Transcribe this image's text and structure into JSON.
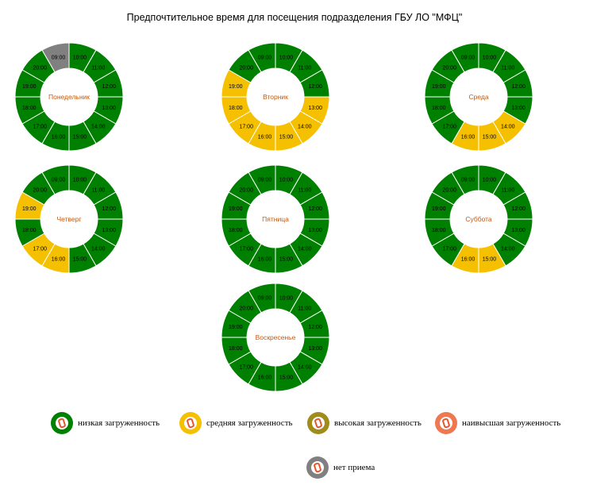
{
  "title": "Предпочтительное время для посещения подразделения ГБУ ЛО \"МФЦ\"",
  "colors": {
    "low": "#008000",
    "medium": "#f5c000",
    "high": "#a08c1a",
    "highest": "#f07850",
    "closed": "#808080",
    "day_label": "#c55a11",
    "hour_label": "#000000"
  },
  "chart_data": [
    {
      "type": "pie",
      "title": "Понедельник",
      "hours": [
        "09:00",
        "10:00",
        "11:00",
        "12:00",
        "13:00",
        "14:00",
        "15:00",
        "16:00",
        "17:00",
        "18:00",
        "19:00",
        "20:00"
      ],
      "load": [
        "closed",
        "low",
        "low",
        "low",
        "low",
        "low",
        "low",
        "low",
        "low",
        "low",
        "low",
        "low"
      ]
    },
    {
      "type": "pie",
      "title": "Вторник",
      "hours": [
        "09:00",
        "10:00",
        "11:00",
        "12:00",
        "13:00",
        "14:00",
        "15:00",
        "16:00",
        "17:00",
        "18:00",
        "19:00",
        "20:00"
      ],
      "load": [
        "low",
        "low",
        "low",
        "low",
        "medium",
        "medium",
        "medium",
        "medium",
        "medium",
        "medium",
        "medium",
        "low"
      ]
    },
    {
      "type": "pie",
      "title": "Среда",
      "hours": [
        "09:00",
        "10:00",
        "11:00",
        "12:00",
        "13:00",
        "14:00",
        "15:00",
        "16:00",
        "17:00",
        "18:00",
        "19:00",
        "20:00"
      ],
      "load": [
        "low",
        "low",
        "low",
        "low",
        "low",
        "medium",
        "medium",
        "medium",
        "low",
        "low",
        "low",
        "low"
      ]
    },
    {
      "type": "pie",
      "title": "Четверг",
      "hours": [
        "09:00",
        "10:00",
        "11:00",
        "12:00",
        "13:00",
        "14:00",
        "15:00",
        "16:00",
        "17:00",
        "18:00",
        "19:00",
        "20:00"
      ],
      "load": [
        "low",
        "low",
        "low",
        "low",
        "low",
        "low",
        "low",
        "medium",
        "medium",
        "low",
        "medium",
        "low"
      ]
    },
    {
      "type": "pie",
      "title": "Пятница",
      "hours": [
        "09:00",
        "10:00",
        "11:00",
        "12:00",
        "13:00",
        "14:00",
        "15:00",
        "16:00",
        "17:00",
        "18:00",
        "19:00",
        "20:00"
      ],
      "load": [
        "low",
        "low",
        "low",
        "low",
        "low",
        "low",
        "low",
        "low",
        "low",
        "low",
        "low",
        "low"
      ]
    },
    {
      "type": "pie",
      "title": "Суббота",
      "hours": [
        "09:00",
        "10:00",
        "11:00",
        "12:00",
        "13:00",
        "14:00",
        "15:00",
        "16:00",
        "17:00",
        "18:00",
        "19:00",
        "20:00"
      ],
      "load": [
        "low",
        "low",
        "low",
        "low",
        "low",
        "low",
        "medium",
        "medium",
        "low",
        "low",
        "low",
        "low"
      ]
    },
    {
      "type": "pie",
      "title": "Воскресенье",
      "hours": [
        "09:00",
        "10:00",
        "11:00",
        "12:00",
        "13:00",
        "14:00",
        "15:00",
        "16:00",
        "17:00",
        "18:00",
        "19:00",
        "20:00"
      ],
      "load": [
        "low",
        "low",
        "low",
        "low",
        "low",
        "low",
        "low",
        "low",
        "low",
        "low",
        "low",
        "low"
      ]
    }
  ],
  "legend": [
    {
      "key": "low",
      "label": "низкая загруженность"
    },
    {
      "key": "medium",
      "label": "средняя загруженность"
    },
    {
      "key": "high",
      "label": "высокая загруженность"
    },
    {
      "key": "highest",
      "label": "наивысшая загруженность"
    },
    {
      "key": "closed",
      "label": "нет приема"
    }
  ]
}
